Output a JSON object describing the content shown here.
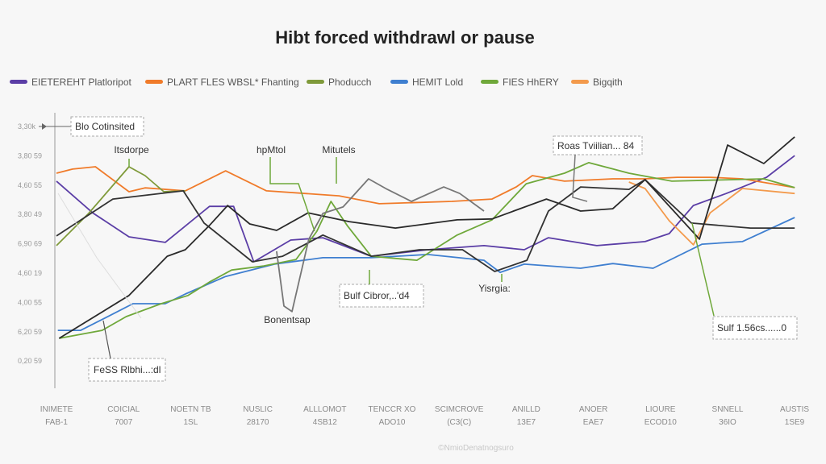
{
  "chart_data": {
    "type": "line",
    "title": "Hibt forced withdrawl or pause",
    "categories": [
      "INIMETE",
      "COICIAL",
      "NOETN TB",
      "NUSLIC",
      "ALLLOMOT",
      "TENCCR XO",
      "SCIMCROVE",
      "ANILLD",
      "ANOER",
      "LIOURE",
      "SNNELL",
      "AUSTIS"
    ],
    "category_sublabels": [
      "FAB-1",
      "7007",
      "1SL",
      "28170",
      "4SB12",
      "ADO10",
      "(C3(C)",
      "13E7",
      "EAE7",
      "ECOD10",
      "36IO",
      "1SE9"
    ],
    "y_tick_labels": [
      "3,30k",
      "3,80 59",
      "4,60 55",
      "3,80 49",
      "6,90 69",
      "4,60 19",
      "4,00 55",
      "6,20 59",
      "0,20 59"
    ],
    "ylim": [
      0,
      8
    ],
    "grid": false,
    "legend_position": "top",
    "series": [
      {
        "name": "EIETEREHT Platloripot",
        "color": "#5b3ea6",
        "points": [
          [
            0,
            6.13
          ],
          [
            0.54,
            5.05
          ],
          [
            1.08,
            4.23
          ],
          [
            1.62,
            4.04
          ],
          [
            2.28,
            5.27
          ],
          [
            2.64,
            5.27
          ],
          [
            2.94,
            3.38
          ],
          [
            3.49,
            4.12
          ],
          [
            3.97,
            4.2
          ],
          [
            4.69,
            3.57
          ],
          [
            5.53,
            3.79
          ],
          [
            6.37,
            3.93
          ],
          [
            6.97,
            3.79
          ],
          [
            7.33,
            4.2
          ],
          [
            8.05,
            3.93
          ],
          [
            8.77,
            4.07
          ],
          [
            9.13,
            4.34
          ],
          [
            9.49,
            5.3
          ],
          [
            9.98,
            5.71
          ],
          [
            10.58,
            6.26
          ],
          [
            11,
            7.0
          ]
        ]
      },
      {
        "name": "PLART FLES WBSL* Fhanting",
        "color": "#f07b2a",
        "points": [
          [
            0,
            6.4
          ],
          [
            0.24,
            6.54
          ],
          [
            0.58,
            6.62
          ],
          [
            1.08,
            5.77
          ],
          [
            1.32,
            5.9
          ],
          [
            1.92,
            5.8
          ],
          [
            2.52,
            6.48
          ],
          [
            3.13,
            5.8
          ],
          [
            4.21,
            5.63
          ],
          [
            4.81,
            5.36
          ],
          [
            5.89,
            5.44
          ],
          [
            6.49,
            5.52
          ],
          [
            6.85,
            5.93
          ],
          [
            7.09,
            6.32
          ],
          [
            7.57,
            6.13
          ],
          [
            8.29,
            6.21
          ],
          [
            8.77,
            6.21
          ],
          [
            9.25,
            6.26
          ],
          [
            9.74,
            6.26
          ],
          [
            10.22,
            6.21
          ],
          [
            11,
            5.91
          ]
        ]
      },
      {
        "name": "Phoducch",
        "color": "#7f9a3a",
        "points": [
          [
            0,
            3.93
          ],
          [
            0.48,
            5.03
          ],
          [
            1.08,
            6.62
          ],
          [
            1.32,
            6.32
          ],
          [
            1.6,
            5.77
          ],
          [
            1.92,
            5.8
          ]
        ]
      },
      {
        "name": "HEMIT Lold",
        "color": "#3f7fd0",
        "points": [
          [
            0.02,
            1.04
          ],
          [
            0.36,
            1.04
          ],
          [
            0.72,
            1.46
          ],
          [
            1.14,
            1.95
          ],
          [
            1.62,
            1.95
          ],
          [
            1.92,
            2.28
          ],
          [
            2.52,
            2.88
          ],
          [
            3.25,
            3.3
          ],
          [
            3.97,
            3.52
          ],
          [
            4.69,
            3.52
          ],
          [
            5.53,
            3.63
          ],
          [
            6.37,
            3.43
          ],
          [
            6.61,
            3.02
          ],
          [
            6.97,
            3.3
          ],
          [
            7.81,
            3.16
          ],
          [
            8.29,
            3.32
          ],
          [
            8.89,
            3.16
          ],
          [
            9.62,
            3.98
          ],
          [
            10.22,
            4.07
          ],
          [
            11,
            4.89
          ]
        ]
      },
      {
        "name": "FIES HhERY",
        "color": "#6fa83a",
        "points": [
          [
            0.04,
            0.77
          ],
          [
            0.68,
            1.04
          ],
          [
            1.04,
            1.51
          ],
          [
            1.56,
            1.95
          ],
          [
            1.96,
            2.23
          ],
          [
            2.28,
            2.69
          ],
          [
            2.61,
            3.1
          ],
          [
            3.09,
            3.24
          ],
          [
            3.57,
            3.46
          ],
          [
            3.88,
            4.42
          ],
          [
            4.09,
            5.44
          ],
          [
            4.33,
            4.62
          ],
          [
            4.69,
            3.57
          ],
          [
            5.37,
            3.43
          ],
          [
            5.97,
            4.29
          ],
          [
            6.49,
            4.81
          ],
          [
            7.0,
            6.04
          ],
          [
            7.57,
            6.4
          ],
          [
            7.93,
            6.76
          ],
          [
            8.53,
            6.4
          ],
          [
            9.17,
            6.13
          ],
          [
            10.54,
            6.21
          ],
          [
            11,
            5.91
          ]
        ]
      },
      {
        "name": "Bigqith",
        "color": "#f39a4c",
        "points": [
          [
            8.53,
            6.1
          ],
          [
            8.77,
            5.88
          ],
          [
            9.13,
            4.78
          ],
          [
            9.49,
            3.96
          ],
          [
            9.74,
            5.05
          ],
          [
            10.22,
            5.88
          ],
          [
            11,
            5.71
          ]
        ]
      },
      {
        "color": "#333333",
        "points": [
          [
            0,
            4.26
          ],
          [
            0.84,
            5.52
          ],
          [
            1.89,
            5.8
          ],
          [
            2.2,
            4.7
          ],
          [
            2.92,
            3.38
          ],
          [
            3.37,
            3.57
          ],
          [
            3.97,
            4.29
          ],
          [
            4.69,
            3.57
          ],
          [
            5.41,
            3.79
          ],
          [
            6.05,
            3.79
          ],
          [
            6.53,
            3.05
          ],
          [
            7.01,
            3.43
          ],
          [
            7.33,
            5.11
          ],
          [
            7.81,
            5.93
          ],
          [
            8.53,
            5.85
          ],
          [
            8.77,
            6.18
          ],
          [
            9.46,
            4.7
          ],
          [
            10.34,
            4.53
          ],
          [
            11,
            4.53
          ]
        ]
      },
      {
        "color": "#2a2a2a",
        "points": [
          [
            0.04,
            0.77
          ],
          [
            1.08,
            2.23
          ],
          [
            1.65,
            3.57
          ],
          [
            1.92,
            3.79
          ],
          [
            2.28,
            4.62
          ],
          [
            2.55,
            5.3
          ],
          [
            2.88,
            4.67
          ],
          [
            3.28,
            4.45
          ],
          [
            3.75,
            5.05
          ],
          [
            4.36,
            4.75
          ],
          [
            5.05,
            4.53
          ],
          [
            5.97,
            4.81
          ],
          [
            6.49,
            4.84
          ],
          [
            7.3,
            5.52
          ],
          [
            7.81,
            5.11
          ],
          [
            8.29,
            5.19
          ],
          [
            8.77,
            6.18
          ],
          [
            9.58,
            4.15
          ],
          [
            10,
            7.36
          ],
          [
            10.54,
            6.73
          ],
          [
            11,
            7.64
          ]
        ]
      },
      {
        "color": "#777777",
        "points": [
          [
            3.28,
            3.74
          ],
          [
            3.39,
            1.87
          ],
          [
            3.51,
            1.68
          ],
          [
            3.76,
            4.15
          ],
          [
            3.97,
            5.03
          ],
          [
            4.27,
            5.25
          ],
          [
            4.65,
            6.21
          ],
          [
            4.93,
            5.85
          ],
          [
            5.29,
            5.44
          ],
          [
            5.77,
            5.93
          ],
          [
            6.01,
            5.71
          ],
          [
            6.37,
            5.11
          ]
        ]
      }
    ],
    "annotations": [
      "Blo Cotinsited",
      "Itsdorpe",
      "hpMtol",
      "Mitutels",
      "Roas Tviilian... 84",
      "Bulf Cibror,..'d4",
      "Yisrgia:",
      "Bonentsap",
      "Sulf 1.56cs......0",
      "FeSS Rlbhi...:dl"
    ]
  },
  "watermark": "©NmioDenatnogsuro"
}
